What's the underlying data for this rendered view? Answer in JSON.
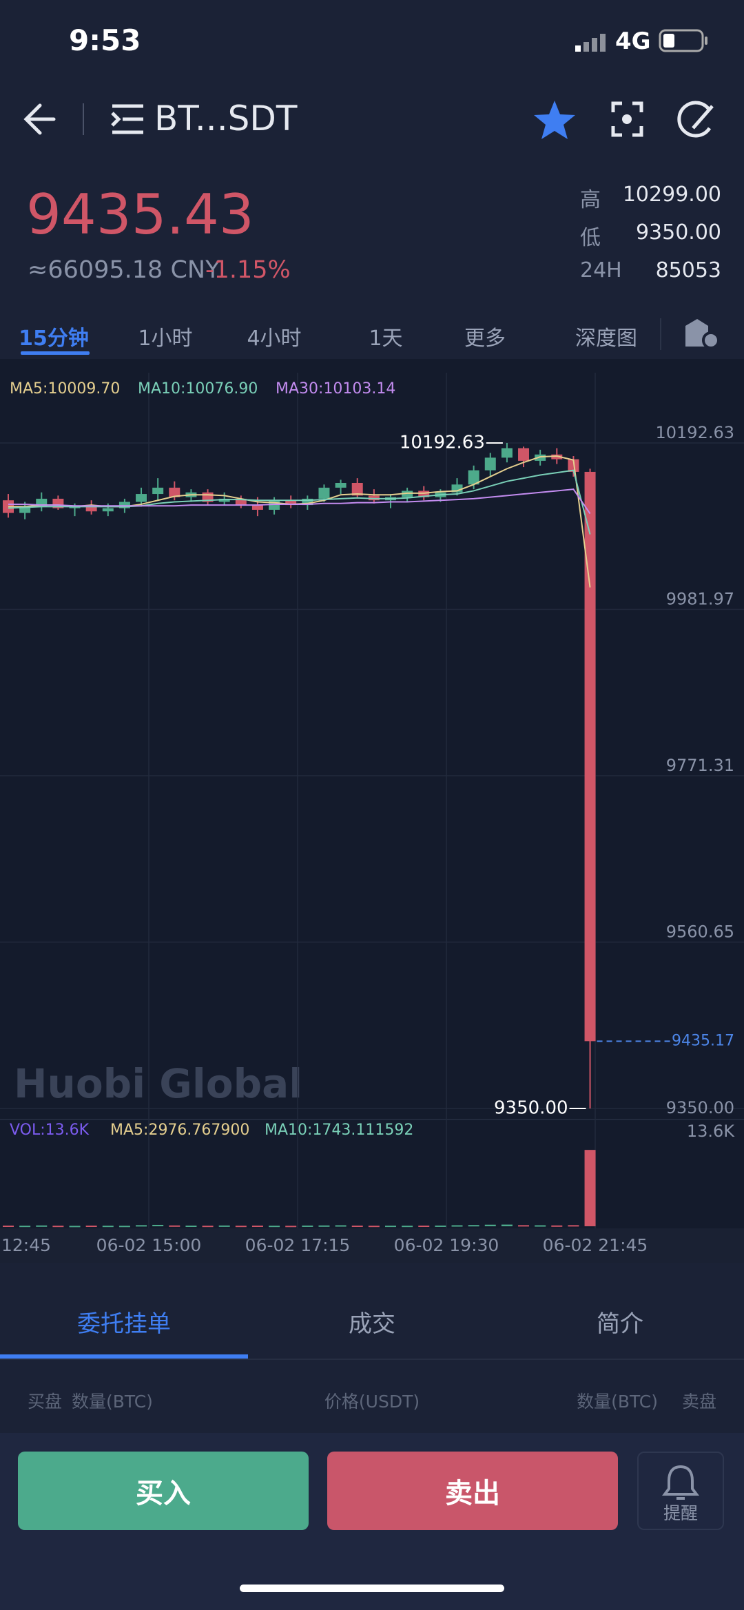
{
  "status_bar": {
    "time": "9:53",
    "network": "4G"
  },
  "header": {
    "title": "BT...SDT"
  },
  "ticker": {
    "price": "9435.43",
    "cny": "≈66095.18 CNY",
    "change": "-1.15%",
    "stats": [
      {
        "label": "高",
        "value": "10299.00"
      },
      {
        "label": "低",
        "value": "9350.00"
      },
      {
        "label": "24H",
        "value": "85053"
      }
    ]
  },
  "intervals": [
    "15分钟",
    "1小时",
    "4小时",
    "1天",
    "更多",
    "深度图"
  ],
  "chart_data": {
    "type": "candlestick",
    "up_color": "#4daa8b",
    "down_color": "#d05667",
    "indicators": [
      {
        "name": "MA5:10009.70",
        "color": "#e5cf8f",
        "values": [
          10112,
          10112,
          10114,
          10114,
          10112,
          10114,
          10112,
          10112,
          10115,
          10120,
          10125,
          10127,
          10127,
          10126,
          10122,
          10118,
          10117,
          10115,
          10116,
          10120,
          10127,
          10128,
          10127,
          10127,
          10129,
          10129,
          10131,
          10132,
          10140,
          10150,
          10160,
          10168,
          10175,
          10176,
          10171,
          10009.7
        ]
      },
      {
        "name": "MA10:10076.90",
        "color": "#7ad0b8",
        "values": [
          10110,
          10111,
          10112,
          10112,
          10112,
          10112,
          10112,
          10112,
          10113,
          10116,
          10118,
          10119,
          10120,
          10121,
          10121,
          10120,
          10120,
          10120,
          10120,
          10121,
          10122,
          10123,
          10122,
          10122,
          10123,
          10125,
          10127,
          10128,
          10132,
          10138,
          10144,
          10148,
          10152,
          10155,
          10158,
          10076.9
        ]
      },
      {
        "name": "MA30:10103.14",
        "color": "#c38cf0",
        "values": [
          10115,
          10115,
          10114,
          10114,
          10113,
          10113,
          10113,
          10113,
          10113,
          10113,
          10113,
          10114,
          10114,
          10114,
          10114,
          10114,
          10115,
          10115,
          10115,
          10116,
          10116,
          10117,
          10117,
          10118,
          10118,
          10119,
          10120,
          10121,
          10122,
          10124,
          10126,
          10128,
          10130,
          10132,
          10134,
          10103.14
        ]
      }
    ],
    "candles": [
      [
        10120,
        10128,
        10098,
        10104
      ],
      [
        10104,
        10118,
        10096,
        10112
      ],
      [
        10112,
        10130,
        10106,
        10122
      ],
      [
        10122,
        10126,
        10108,
        10110
      ],
      [
        10110,
        10116,
        10100,
        10112
      ],
      [
        10112,
        10120,
        10102,
        10106
      ],
      [
        10106,
        10116,
        10100,
        10110
      ],
      [
        10110,
        10122,
        10104,
        10118
      ],
      [
        10118,
        10136,
        10112,
        10128
      ],
      [
        10128,
        10148,
        10120,
        10136
      ],
      [
        10136,
        10144,
        10120,
        10124
      ],
      [
        10124,
        10134,
        10118,
        10130
      ],
      [
        10130,
        10134,
        10114,
        10118
      ],
      [
        10118,
        10130,
        10114,
        10122
      ],
      [
        10122,
        10126,
        10110,
        10114
      ],
      [
        10114,
        10124,
        10100,
        10108
      ],
      [
        10108,
        10124,
        10102,
        10120
      ],
      [
        10120,
        10126,
        10110,
        10114
      ],
      [
        10114,
        10126,
        10108,
        10122
      ],
      [
        10122,
        10140,
        10118,
        10136
      ],
      [
        10136,
        10146,
        10128,
        10142
      ],
      [
        10142,
        10148,
        10124,
        10126
      ],
      [
        10126,
        10134,
        10116,
        10120
      ],
      [
        10120,
        10128,
        10110,
        10124
      ],
      [
        10124,
        10136,
        10118,
        10132
      ],
      [
        10132,
        10138,
        10120,
        10124
      ],
      [
        10124,
        10134,
        10118,
        10130
      ],
      [
        10130,
        10148,
        10126,
        10140
      ],
      [
        10140,
        10164,
        10134,
        10158
      ],
      [
        10158,
        10180,
        10150,
        10174
      ],
      [
        10174,
        10192.63,
        10168,
        10186
      ],
      [
        10186,
        10188,
        10162,
        10170
      ],
      [
        10170,
        10184,
        10164,
        10178
      ],
      [
        10178,
        10186,
        10166,
        10172
      ],
      [
        10172,
        10176,
        10150,
        10156
      ],
      [
        10156,
        10160,
        9350,
        9435.17
      ]
    ],
    "ylim": [
      9339.5,
      10277.2
    ],
    "yticks": [
      10192.63,
      9981.97,
      9771.31,
      9560.65,
      {
        "value": 9350,
        "label": "9350.00"
      }
    ],
    "annotations": {
      "high": "10192.63",
      "low": "9350.00",
      "last": {
        "value": 9435.17,
        "label": "9435.17"
      }
    },
    "volume": {
      "labels": [
        {
          "text": "VOL:13.6K",
          "color": "#7c5cf0"
        },
        {
          "text": "MA5:2976.767900",
          "color": "#e5cf8f"
        },
        {
          "text": "MA10:1743.111592",
          "color": "#7ad0b8"
        }
      ],
      "values": [
        0.12,
        0.1,
        0.15,
        0.1,
        0.08,
        0.12,
        0.1,
        0.09,
        0.2,
        0.25,
        0.15,
        0.12,
        0.1,
        0.14,
        0.1,
        0.12,
        0.1,
        0.09,
        0.13,
        0.15,
        0.18,
        0.12,
        0.1,
        0.11,
        0.1,
        0.12,
        0.13,
        0.18,
        0.22,
        0.28,
        0.3,
        0.2,
        0.18,
        0.15,
        0.2,
        13.6
      ],
      "ylim": [
        0,
        14.6
      ],
      "yticks": [
        {
          "value": 13.6,
          "label": "13.6K"
        }
      ]
    },
    "x_labels": [
      "12:45",
      "06-02 15:00",
      "06-02 17:15",
      "06-02 19:30",
      "06-02 21:45"
    ],
    "watermark": "Huobi Global"
  },
  "tabs": [
    "委托挂单",
    "成交",
    "简介"
  ],
  "order_book_header": {
    "left": "买盘",
    "left_qty": "数量(BTC)",
    "price": "价格(USDT)",
    "right_qty": "数量(BTC)",
    "right": "卖盘"
  },
  "actions": {
    "buy": "买入",
    "sell": "卖出",
    "alert": "提醒"
  }
}
